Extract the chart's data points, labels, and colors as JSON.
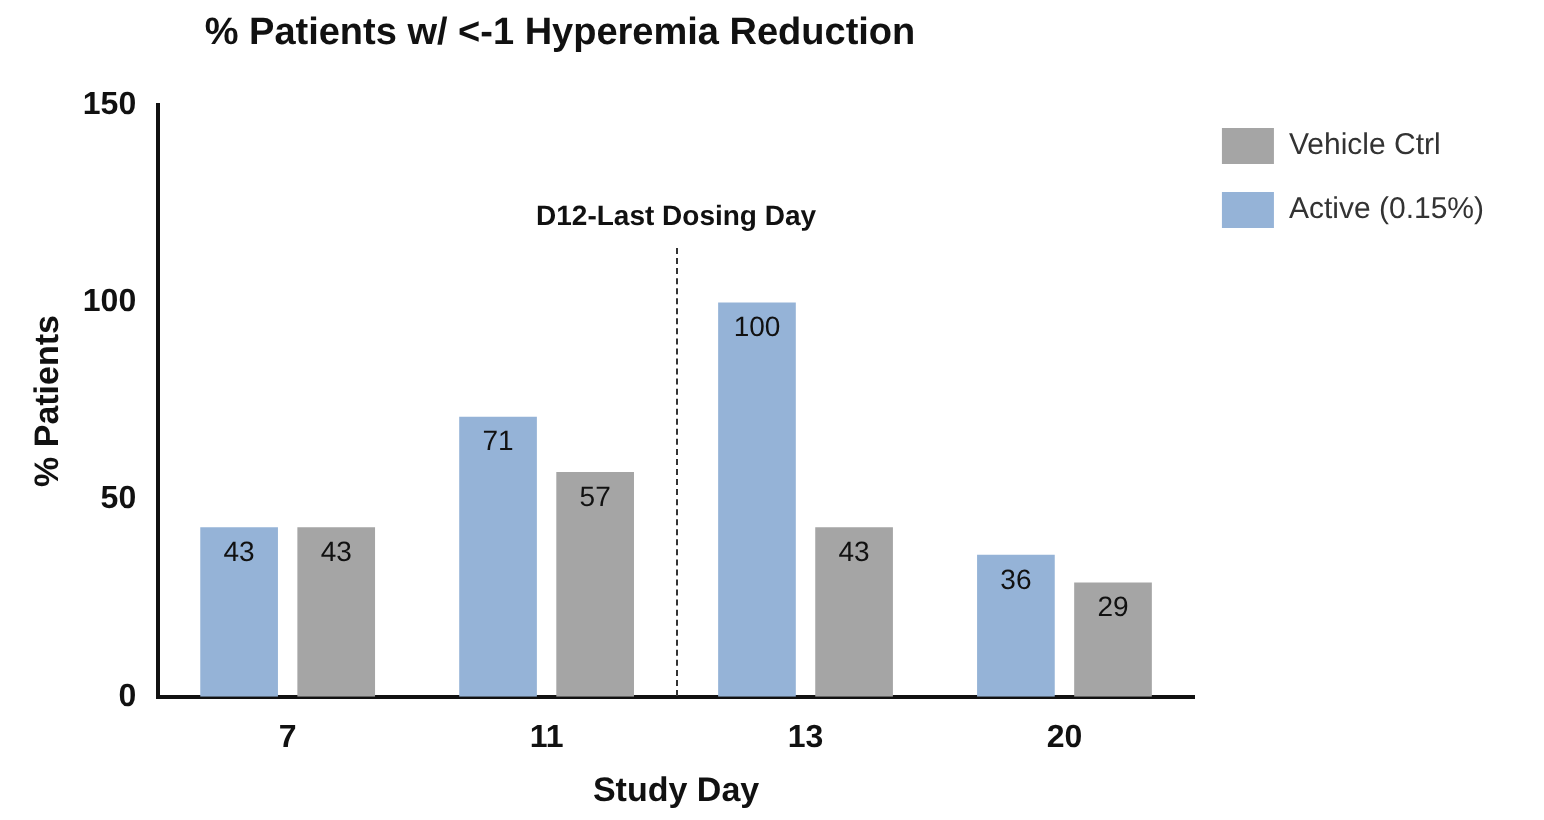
{
  "chart_data": {
    "type": "bar",
    "title": "% Patients w/ <-1 Hyperemia Reduction",
    "xlabel": "Study Day",
    "ylabel": "% Patients",
    "categories": [
      "7",
      "11",
      "13",
      "20"
    ],
    "series": [
      {
        "name": "Active (0.15%)",
        "color": "#95b3d7",
        "values": [
          43,
          71,
          100,
          36
        ]
      },
      {
        "name": "Vehicle Ctrl",
        "color": "#a5a5a5",
        "values": [
          43,
          57,
          43,
          29
        ]
      }
    ],
    "ylim": [
      0,
      150
    ],
    "yticks": [
      0,
      50,
      100,
      150
    ],
    "grid": false,
    "legend": "top right",
    "data_labels": true,
    "annotations": [
      "D12-Last Dosing Day"
    ]
  }
}
